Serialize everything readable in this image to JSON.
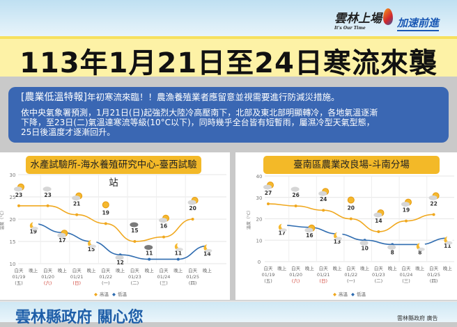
{
  "header": {
    "logo_yunlin": "雲林上場",
    "logo_sub": "It's Our Time",
    "logo_slogan": "加速前進"
  },
  "title": "113年1月21日至24日寒流來襲",
  "notice": {
    "tag": "[農業低溫特報]",
    "headline": "年初寒流來臨！！農漁養殖業者應留意並視需要進行防減災措施。",
    "body": "依中央氣象署預測，1月21日(日)起強烈大陸冷高壓南下，北部及東北部明顯轉冷，各地氣溫逐漸\n下降，至23日(二)氣溫達寒流等級(10°C以下)，同時幾乎全台皆有短暫雨，屬濕冷型天氣型態，\n25日後溫度才逐漸回升。"
  },
  "chart_data": [
    {
      "type": "line",
      "title": "水產試驗所-海水養殖研究中心-臺西試驗站",
      "ylabel": "溫度（°C）",
      "ylim": [
        10,
        30
      ],
      "yticks": [
        10,
        15,
        20,
        25,
        30
      ],
      "dates": [
        "01/19",
        "01/20",
        "01/21",
        "01/22",
        "01/23",
        "01/24",
        "01/25"
      ],
      "weekdays": [
        "(五)",
        "(六)",
        "(日)",
        "(一)",
        "(二)",
        "(三)",
        "(四)"
      ],
      "period_labels": [
        "白天",
        "晚上"
      ],
      "legend": [
        "高溫",
        "低溫"
      ],
      "series": [
        {
          "name": "高溫",
          "color": "#f0a81e",
          "values": [
            23,
            23,
            21,
            19,
            15,
            16,
            20
          ],
          "icons": [
            "sun-cloud",
            "cloud",
            "cloud-sun",
            "sun",
            "cloud-dark",
            "cloud-sun",
            "cloud-sun"
          ]
        },
        {
          "name": "低溫",
          "color": "#2f6cb0",
          "values": [
            19,
            17,
            15,
            12,
            11,
            11,
            14
          ],
          "icons": [
            "moon",
            "cloud-sun",
            "moon",
            "cloud",
            "cloud-dark",
            "moon",
            "moon"
          ]
        }
      ]
    },
    {
      "type": "line",
      "title": "臺南區農業改良場-斗南分場",
      "ylabel": "溫度（°C）",
      "ylim": [
        0,
        40
      ],
      "yticks": [
        0,
        10,
        20,
        30,
        40
      ],
      "dates": [
        "01/19",
        "01/20",
        "01/21",
        "01/22",
        "01/23",
        "01/24",
        "01/25"
      ],
      "weekdays": [
        "(五)",
        "(六)",
        "(日)",
        "(一)",
        "(二)",
        "(三)",
        "(四)"
      ],
      "period_labels": [
        "白天",
        "晚上"
      ],
      "legend": [
        "高溫",
        "低溫"
      ],
      "series": [
        {
          "name": "高溫",
          "color": "#f0a81e",
          "values": [
            27,
            26,
            24,
            20,
            14,
            19,
            22
          ],
          "icons": [
            "cloud-sun",
            "cloud",
            "cloud-sun",
            "sun",
            "cloud-sun",
            "cloud-sun",
            "cloud-sun"
          ]
        },
        {
          "name": "低溫",
          "color": "#2f6cb0",
          "values": [
            17,
            16,
            13,
            10,
            8,
            8,
            11
          ],
          "icons": [
            "moon",
            "cloud-sun",
            "moon",
            "rain",
            "cloud",
            "moon",
            "moon"
          ]
        }
      ]
    }
  ],
  "footer": {
    "motto": "雲林縣政府 關心您",
    "sponsor": "雲林縣政府 廣告"
  }
}
